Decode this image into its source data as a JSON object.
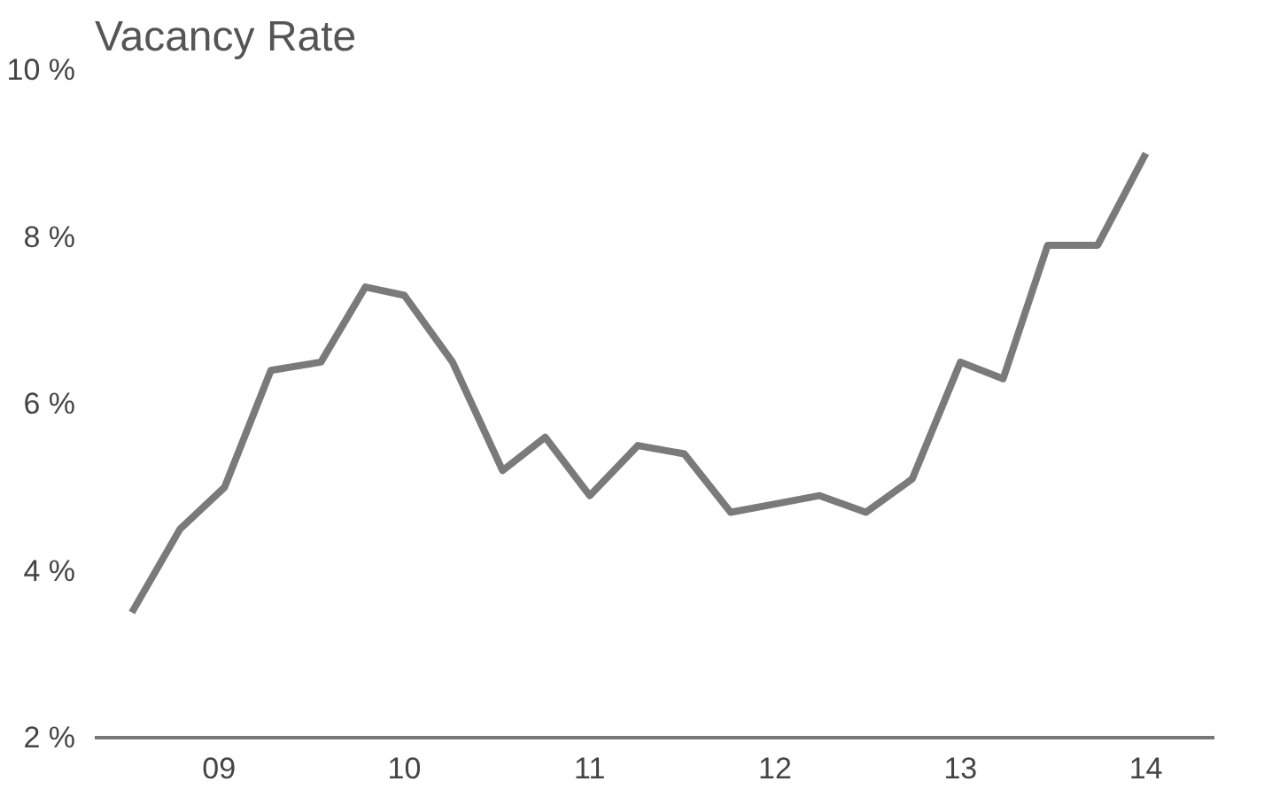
{
  "chart_data": {
    "type": "line",
    "title": "Vacancy Rate",
    "x": [
      2008.53,
      2008.79,
      2009.03,
      2009.28,
      2009.55,
      2009.79,
      2010.0,
      2010.26,
      2010.53,
      2010.76,
      2011.0,
      2011.26,
      2011.51,
      2011.76,
      2012.0,
      2012.24,
      2012.49,
      2012.74,
      2013.0,
      2013.23,
      2013.47,
      2013.74,
      2014.0
    ],
    "series": [
      {
        "color": "#7a7a7a",
        "values": [
          3.5,
          4.5,
          5.0,
          6.4,
          6.5,
          7.4,
          7.3,
          6.5,
          5.2,
          5.6,
          4.9,
          5.5,
          5.4,
          4.7,
          4.8,
          4.9,
          4.7,
          5.1,
          6.5,
          6.3,
          7.9,
          7.9,
          9.0
        ]
      }
    ],
    "xlim": [
      2008.33,
      2014.37
    ],
    "xticks": [
      {
        "value": 2009,
        "label": "09"
      },
      {
        "value": 2010,
        "label": "10"
      },
      {
        "value": 2011,
        "label": "11"
      },
      {
        "value": 2012,
        "label": "12"
      },
      {
        "value": 2013,
        "label": "13"
      },
      {
        "value": 2014,
        "label": "14"
      }
    ],
    "ylim": [
      2,
      10
    ],
    "yticks": [
      {
        "value": 2,
        "label": "2 %"
      },
      {
        "value": 4,
        "label": "4 %"
      },
      {
        "value": 6,
        "label": "6 %"
      },
      {
        "value": 8,
        "label": "8 %"
      },
      {
        "value": 10,
        "label": "10 %"
      }
    ],
    "grid": false,
    "marker": "none",
    "line_style": "solid"
  }
}
